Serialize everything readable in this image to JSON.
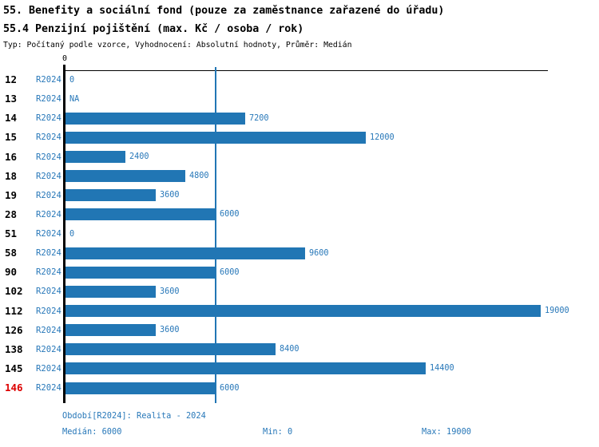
{
  "header": {
    "title_line1": "55. Benefity a sociální fond (pouze za zaměstnance zařazené do úřadu)",
    "title_line2": "55.4 Penzijní pojištění (max. Kč / osoba / rok)",
    "subtitle": "Typ: Počítaný podle vzorce, Vyhodnocení: Absolutní hodnoty, Průměr: Medián"
  },
  "chart_data": {
    "type": "bar",
    "orientation": "horizontal",
    "title": "55.4 Penzijní pojištění (max. Kč / osoba / rok)",
    "x_axis": {
      "origin_label": "0",
      "min": 0,
      "max": 19000,
      "grid": false
    },
    "series_period": "R2024",
    "categories": [
      "12",
      "13",
      "14",
      "15",
      "16",
      "18",
      "19",
      "28",
      "51",
      "58",
      "90",
      "102",
      "112",
      "126",
      "138",
      "145",
      "146"
    ],
    "values": [
      0,
      null,
      7200,
      12000,
      2400,
      4800,
      3600,
      6000,
      0,
      9600,
      6000,
      3600,
      19000,
      3600,
      8400,
      14400,
      6000
    ],
    "value_labels": [
      "0",
      "NA",
      "7200",
      "12000",
      "2400",
      "4800",
      "3600",
      "6000",
      "0",
      "9600",
      "6000",
      "3600",
      "19000",
      "3600",
      "8400",
      "14400",
      "6000"
    ],
    "highlighted_category": "146",
    "median_line_value": 6000,
    "median": 6000,
    "min": 0,
    "max": 19000,
    "legend_position": "none"
  },
  "footer": {
    "period_info": "Období[R2024]: Realita - 2024",
    "median_label": "Medián: 6000",
    "min_label": "Min: 0",
    "max_label": "Max: 19000"
  },
  "colors": {
    "bar": "#2176b4",
    "blue_text": "#2878b9",
    "median_line": "#2176b4",
    "axis": "#000000",
    "highlight_red": "#dd0000",
    "background": "#ffffff",
    "title_text": "#000000"
  }
}
